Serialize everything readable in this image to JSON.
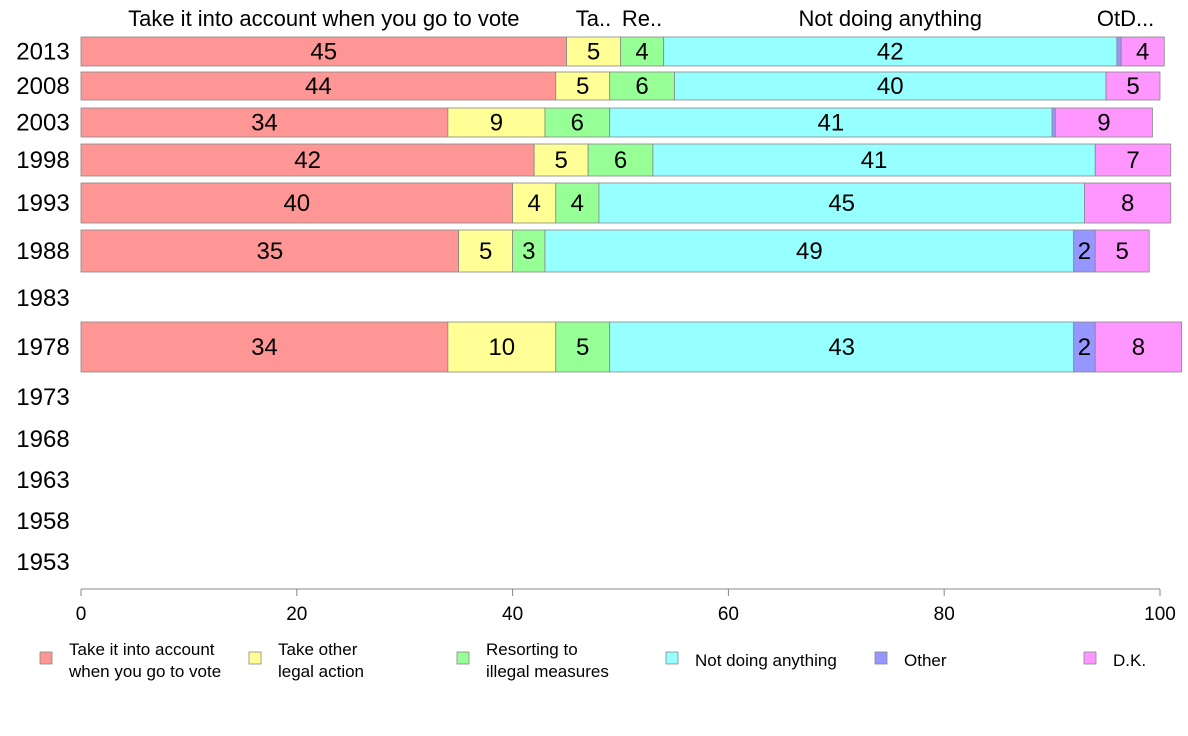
{
  "chart_data": {
    "type": "bar",
    "orientation": "horizontal",
    "stacked": true,
    "xlim": [
      0,
      100
    ],
    "x_ticks": [
      "0",
      "20",
      "40",
      "60",
      "80",
      "100"
    ],
    "grid": false,
    "legend_position": "bottom",
    "categories": [
      "2013",
      "2008",
      "2003",
      "1998",
      "1993",
      "1988",
      "1983",
      "1978",
      "1973",
      "1968",
      "1963",
      "1958",
      "1953"
    ],
    "series": [
      {
        "name": "Take it into account when you go to vote",
        "legend_lines": [
          "Take it into account",
          "when you go to vote"
        ],
        "top_label": "Take it into account when you go to vote",
        "color": "#ff9696",
        "values": [
          45,
          44,
          34,
          42,
          40,
          35,
          null,
          34,
          null,
          null,
          null,
          null,
          null
        ]
      },
      {
        "name": "Take other legal action",
        "legend_lines": [
          "Take other",
          "legal action"
        ],
        "top_label": "Ta..",
        "color": "#ffff96",
        "values": [
          5,
          5,
          9,
          5,
          4,
          5,
          null,
          10,
          null,
          null,
          null,
          null,
          null
        ]
      },
      {
        "name": "Resorting to illegal measures",
        "legend_lines": [
          "Resorting to",
          "illegal measures"
        ],
        "top_label": "Re..",
        "color": "#96ff96",
        "values": [
          4,
          6,
          6,
          6,
          4,
          3,
          null,
          5,
          null,
          null,
          null,
          null,
          null
        ]
      },
      {
        "name": "Not doing anything",
        "legend_lines": [
          "Not doing anything"
        ],
        "top_label": "Not doing anything",
        "color": "#96ffff",
        "values": [
          42,
          40,
          41,
          41,
          45,
          49,
          null,
          43,
          null,
          null,
          null,
          null,
          null
        ]
      },
      {
        "name": "Other",
        "legend_lines": [
          "Other"
        ],
        "top_label": "Ot",
        "color": "#9696ff",
        "values": [
          0.4,
          0,
          0.3,
          0,
          0,
          2,
          null,
          2,
          null,
          null,
          null,
          null,
          null
        ]
      },
      {
        "name": "D.K.",
        "legend_lines": [
          "D.K."
        ],
        "top_label": "D...",
        "color": "#ff96ff",
        "values": [
          4,
          5,
          9,
          7,
          8,
          5,
          null,
          8,
          null,
          null,
          null,
          null,
          null
        ]
      }
    ]
  }
}
